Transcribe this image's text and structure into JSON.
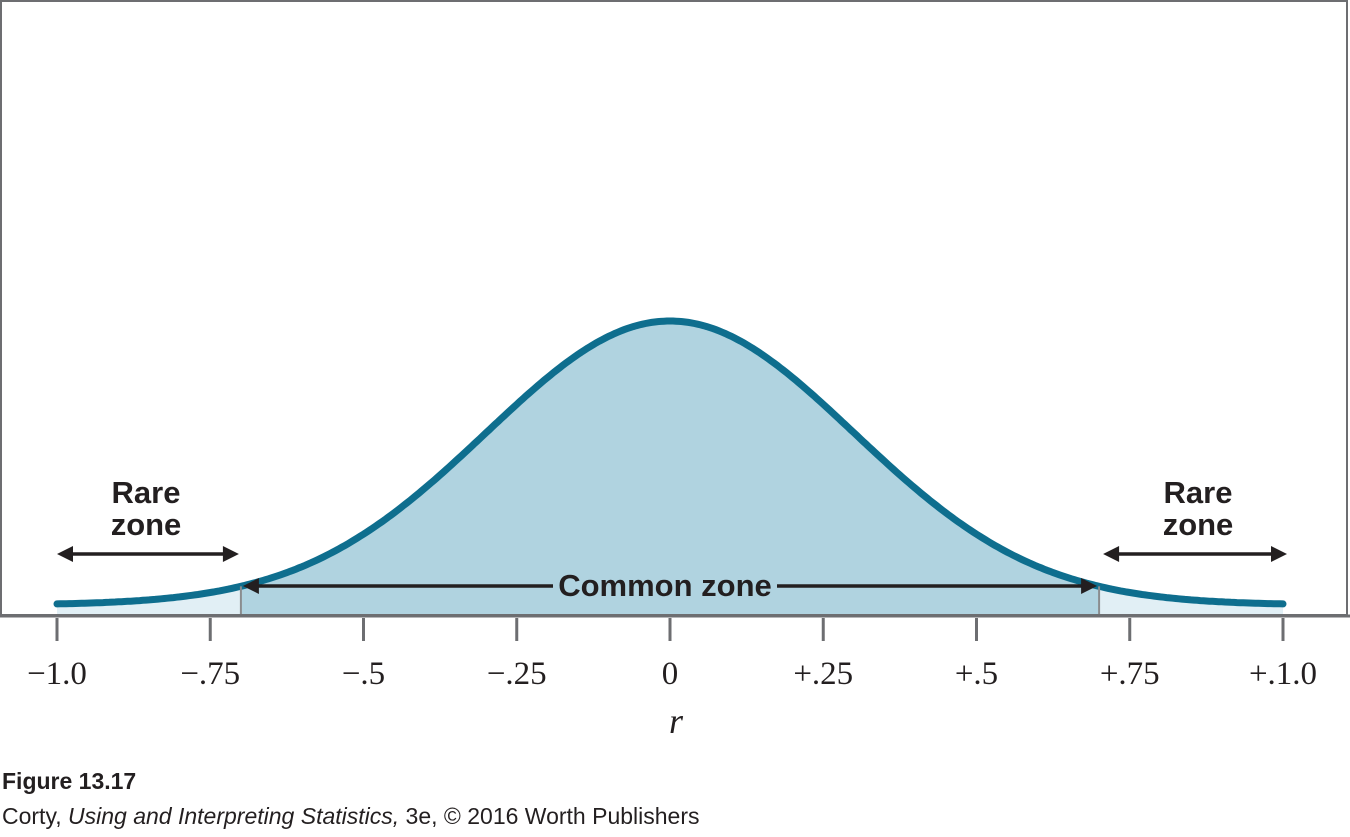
{
  "chart_data": {
    "type": "area",
    "distribution": "sampling distribution of r (bell-shaped, centered at 0)",
    "x_ticks": [
      -1.0,
      -0.75,
      -0.5,
      -0.25,
      0,
      0.25,
      0.5,
      0.75,
      1.0
    ],
    "x_tick_labels": [
      "−1.0",
      "−.75",
      "−.5",
      "−.25",
      "0",
      "+.25",
      "+.5",
      "+.75",
      "+.1.0"
    ],
    "xlabel": "r",
    "xlim": [
      -1.0,
      1.0
    ],
    "critical_values": [
      -0.7,
      0.7
    ],
    "peak_density": 1,
    "regions": [
      {
        "name": "rare-left",
        "from": -1.0,
        "to": -0.7
      },
      {
        "name": "common",
        "from": -0.7,
        "to": 0.7
      },
      {
        "name": "rare-right",
        "from": 0.7,
        "to": 1.0
      }
    ],
    "annotations": {
      "rare_left": [
        "Rare",
        "zone"
      ],
      "rare_right": [
        "Rare",
        "zone"
      ],
      "common": "Common zone"
    },
    "colors": {
      "curve": "#0e6e8e",
      "common_fill": "#b0d3e0",
      "rare_fill": "#e1eff5",
      "axis": "#6d6e71",
      "text": "#231f20"
    }
  },
  "caption": {
    "figure": "Figure 13.17",
    "author": "Corty,",
    "book": "Using and Interpreting Statistics,",
    "rest": "3e, © 2016 Worth Publishers"
  }
}
